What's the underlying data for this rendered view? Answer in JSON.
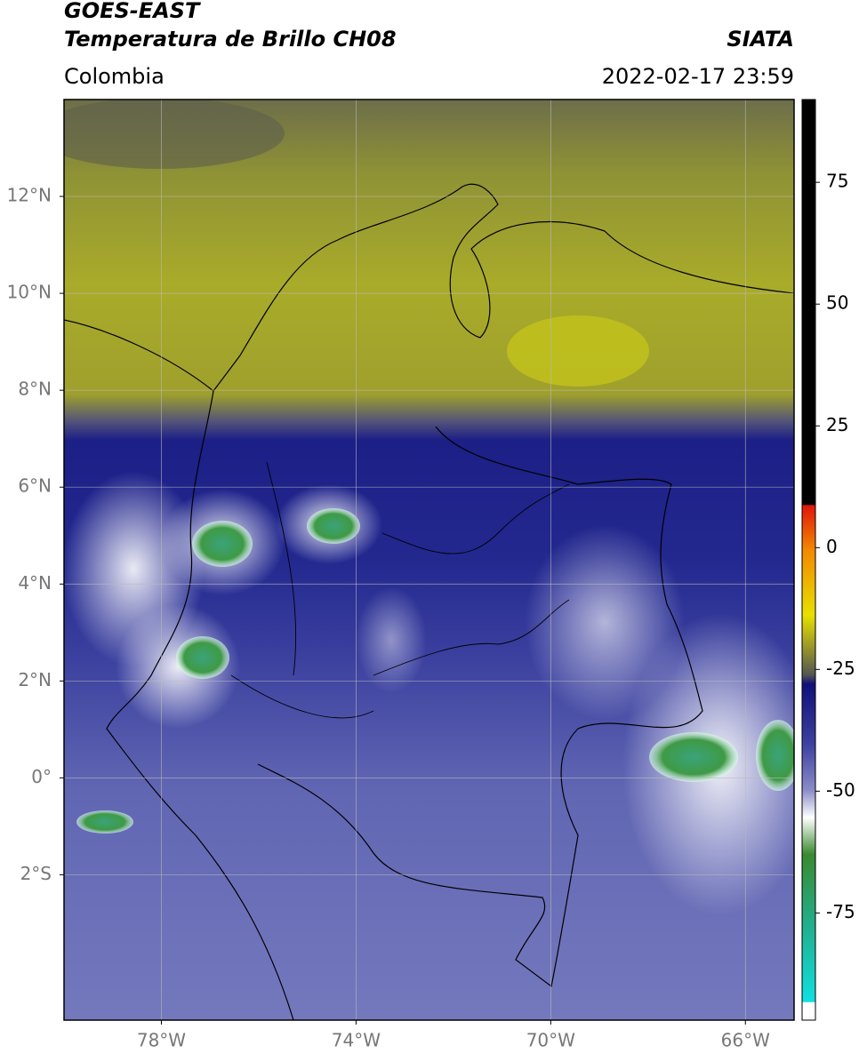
{
  "header": {
    "title": "GOES-EAST",
    "product": "Temperatura de Brillo CH08",
    "source": "SIATA",
    "region": "Colombia",
    "datetime": "2022-02-17 23:59"
  },
  "map": {
    "lon_range": [
      -80,
      -65
    ],
    "lat_range": [
      -5,
      14
    ],
    "lat_ticks": [
      {
        "value": 12,
        "label": "12°N"
      },
      {
        "value": 10,
        "label": "10°N"
      },
      {
        "value": 8,
        "label": "8°N"
      },
      {
        "value": 6,
        "label": "6°N"
      },
      {
        "value": 4,
        "label": "4°N"
      },
      {
        "value": 2,
        "label": "2°N"
      },
      {
        "value": 0,
        "label": "0°"
      },
      {
        "value": -2,
        "label": "2°S"
      }
    ],
    "lon_ticks": [
      {
        "value": -78,
        "label": "78°W"
      },
      {
        "value": -74,
        "label": "74°W"
      },
      {
        "value": -70,
        "label": "70°W"
      },
      {
        "value": -66,
        "label": "66°W"
      }
    ]
  },
  "colorbar": {
    "range": [
      -97,
      92
    ],
    "ticks": [
      75,
      50,
      25,
      0,
      -25,
      -50,
      -75
    ]
  }
}
